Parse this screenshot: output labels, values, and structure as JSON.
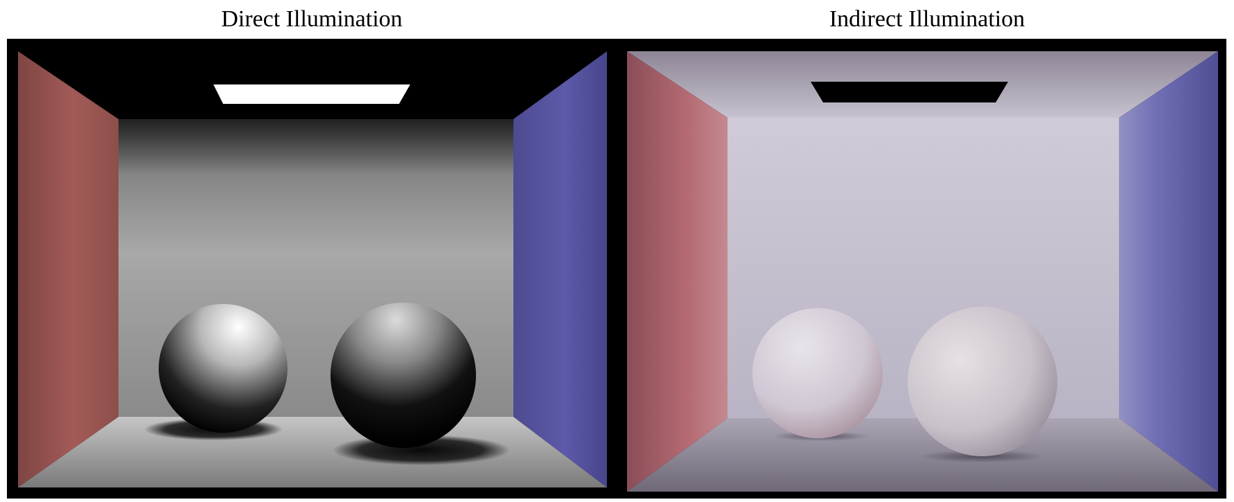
{
  "figure": {
    "left_caption": "Direct Illumination",
    "right_caption": "Indirect Illumination"
  },
  "colors": {
    "left_wall_red": "#a35a57",
    "right_wall_blue": "#5b59a8",
    "light_panel": "#ffffff",
    "frame": "#000000"
  }
}
